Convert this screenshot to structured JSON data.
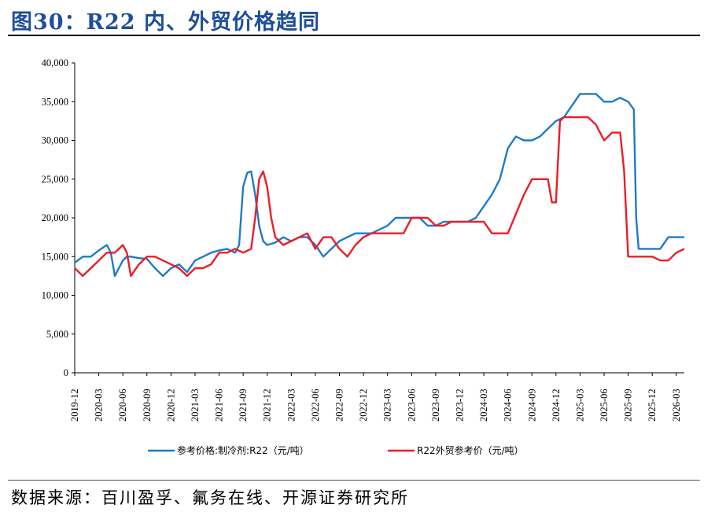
{
  "title": "图30：R22 内、外贸价格趋同",
  "source": "数据来源：百川盈孚、氟务在线、开源证券研究所",
  "colors": {
    "domestic": "#1f7bc4",
    "export": "#ee1c25",
    "title": "#1f4e9a"
  },
  "chart_data": {
    "type": "line",
    "ylim": [
      0,
      40000
    ],
    "yticks": [
      "0",
      "5,000",
      "10,000",
      "15,000",
      "20,000",
      "25,000",
      "30,000",
      "35,000",
      "40,000"
    ],
    "xticks": [
      "2019-12",
      "2020-03",
      "2020-06",
      "2020-09",
      "2020-12",
      "2021-03",
      "2021-06",
      "2021-09",
      "2021-12",
      "2022-03",
      "2022-06",
      "2022-09",
      "2022-12",
      "2023-03",
      "2023-06",
      "2023-09",
      "2023-12",
      "2024-03",
      "2024-06",
      "2024-09",
      "2024-12",
      "2025-03",
      "2025-06",
      "2025-09",
      "2025-12",
      "2026-03"
    ],
    "xlim": [
      "2019-12",
      "2026-04"
    ],
    "legend_position": "bottom",
    "grid": false,
    "series": [
      {
        "name": "参考价格:制冷剂:R22（元/吨）",
        "color": "#1f7bc4",
        "points": [
          [
            "2019-12",
            14200
          ],
          [
            "2020-01",
            15000
          ],
          [
            "2020-02",
            15000
          ],
          [
            "2020-03",
            15800
          ],
          [
            "2020-04",
            16500
          ],
          [
            "2020-04.5",
            15500
          ],
          [
            "2020-05",
            12500
          ],
          [
            "2020-05.5",
            13500
          ],
          [
            "2020-06",
            14500
          ],
          [
            "2020-06.5",
            15000
          ],
          [
            "2020-07",
            15000
          ],
          [
            "2020-08",
            14800
          ],
          [
            "2020-09",
            14700
          ],
          [
            "2020-10",
            13500
          ],
          [
            "2020-11",
            12500
          ],
          [
            "2020-12",
            13500
          ],
          [
            "2021-01",
            14000
          ],
          [
            "2021-02",
            13000
          ],
          [
            "2021-03",
            14500
          ],
          [
            "2021-04",
            15000
          ],
          [
            "2021-05",
            15500
          ],
          [
            "2021-06",
            15800
          ],
          [
            "2021-07",
            16000
          ],
          [
            "2021-08",
            15500
          ],
          [
            "2021-08.5",
            16500
          ],
          [
            "2021-09",
            24000
          ],
          [
            "2021-09.5",
            25800
          ],
          [
            "2021-10",
            26000
          ],
          [
            "2021-10.5",
            23000
          ],
          [
            "2021-11",
            19000
          ],
          [
            "2021-11.5",
            17000
          ],
          [
            "2021-12",
            16500
          ],
          [
            "2022-01",
            16800
          ],
          [
            "2022-02",
            17500
          ],
          [
            "2022-03",
            17000
          ],
          [
            "2022-04",
            17500
          ],
          [
            "2022-05",
            17500
          ],
          [
            "2022-06",
            16500
          ],
          [
            "2022-07",
            15000
          ],
          [
            "2022-08",
            16000
          ],
          [
            "2022-09",
            17000
          ],
          [
            "2022-10",
            17500
          ],
          [
            "2022-11",
            18000
          ],
          [
            "2022-12",
            18000
          ],
          [
            "2023-01",
            18000
          ],
          [
            "2023-02",
            18500
          ],
          [
            "2023-03",
            19000
          ],
          [
            "2023-04",
            20000
          ],
          [
            "2023-05",
            20000
          ],
          [
            "2023-06",
            20000
          ],
          [
            "2023-07",
            20000
          ],
          [
            "2023-08",
            19000
          ],
          [
            "2023-09",
            19000
          ],
          [
            "2023-10",
            19500
          ],
          [
            "2023-11",
            19500
          ],
          [
            "2023-12",
            19500
          ],
          [
            "2024-01",
            19500
          ],
          [
            "2024-02",
            20000
          ],
          [
            "2024-03",
            21500
          ],
          [
            "2024-04",
            23000
          ],
          [
            "2024-05",
            25000
          ],
          [
            "2024-06",
            29000
          ],
          [
            "2024-07",
            30500
          ],
          [
            "2024-08",
            30000
          ],
          [
            "2024-09",
            30000
          ],
          [
            "2024-10",
            30500
          ],
          [
            "2024-11",
            31500
          ],
          [
            "2024-12",
            32500
          ],
          [
            "2025-01",
            33000
          ],
          [
            "2025-02",
            34500
          ],
          [
            "2025-03",
            36000
          ],
          [
            "2025-04",
            36000
          ],
          [
            "2025-05",
            36000
          ],
          [
            "2025-06",
            35000
          ],
          [
            "2025-07",
            35000
          ],
          [
            "2025-08",
            35500
          ],
          [
            "2025-09",
            35000
          ],
          [
            "2025-09.7",
            34000
          ],
          [
            "2025-10",
            20000
          ],
          [
            "2025-10.3",
            16000
          ],
          [
            "2025-11",
            16000
          ],
          [
            "2025-12",
            16000
          ],
          [
            "2026-01",
            16000
          ],
          [
            "2026-02",
            17500
          ],
          [
            "2026-03",
            17500
          ],
          [
            "2026-04",
            17500
          ]
        ]
      },
      {
        "name": "R22外贸参考价（元/吨）",
        "color": "#ee1c25",
        "points": [
          [
            "2019-12",
            13500
          ],
          [
            "2020-01",
            12500
          ],
          [
            "2020-02",
            13500
          ],
          [
            "2020-03",
            14500
          ],
          [
            "2020-04",
            15500
          ],
          [
            "2020-05",
            15500
          ],
          [
            "2020-06",
            16500
          ],
          [
            "2020-06.5",
            15500
          ],
          [
            "2020-07",
            12500
          ],
          [
            "2020-08",
            14000
          ],
          [
            "2020-09",
            15000
          ],
          [
            "2020-10",
            15000
          ],
          [
            "2020-11",
            14500
          ],
          [
            "2020-12",
            14000
          ],
          [
            "2021-01",
            13500
          ],
          [
            "2021-02",
            12500
          ],
          [
            "2021-03",
            13500
          ],
          [
            "2021-04",
            13500
          ],
          [
            "2021-05",
            14000
          ],
          [
            "2021-06",
            15500
          ],
          [
            "2021-07",
            15500
          ],
          [
            "2021-08",
            16000
          ],
          [
            "2021-09",
            15500
          ],
          [
            "2021-10",
            16000
          ],
          [
            "2021-10.5",
            20000
          ],
          [
            "2021-11",
            25000
          ],
          [
            "2021-11.5",
            26000
          ],
          [
            "2021-12",
            24000
          ],
          [
            "2021-12.5",
            20000
          ],
          [
            "2022-01",
            17500
          ],
          [
            "2022-02",
            16500
          ],
          [
            "2022-03",
            17000
          ],
          [
            "2022-04",
            17500
          ],
          [
            "2022-05",
            18000
          ],
          [
            "2022-06",
            16000
          ],
          [
            "2022-07",
            17500
          ],
          [
            "2022-08",
            17500
          ],
          [
            "2022-09",
            16000
          ],
          [
            "2022-10",
            15000
          ],
          [
            "2022-11",
            16500
          ],
          [
            "2022-12",
            17500
          ],
          [
            "2023-01",
            18000
          ],
          [
            "2023-02",
            18000
          ],
          [
            "2023-03",
            18000
          ],
          [
            "2023-04",
            18000
          ],
          [
            "2023-05",
            18000
          ],
          [
            "2023-06",
            20000
          ],
          [
            "2023-07",
            20000
          ],
          [
            "2023-08",
            20000
          ],
          [
            "2023-09",
            19000
          ],
          [
            "2023-10",
            19000
          ],
          [
            "2023-11",
            19500
          ],
          [
            "2023-12",
            19500
          ],
          [
            "2024-01",
            19500
          ],
          [
            "2024-02",
            19500
          ],
          [
            "2024-03",
            19500
          ],
          [
            "2024-04",
            18000
          ],
          [
            "2024-05",
            18000
          ],
          [
            "2024-06",
            18000
          ],
          [
            "2024-07",
            20500
          ],
          [
            "2024-08",
            23000
          ],
          [
            "2024-09",
            25000
          ],
          [
            "2024-10",
            25000
          ],
          [
            "2024-11",
            25000
          ],
          [
            "2024-11.5",
            22000
          ],
          [
            "2024-12",
            22000
          ],
          [
            "2024-12.5",
            32500
          ],
          [
            "2025-01",
            33000
          ],
          [
            "2025-02",
            33000
          ],
          [
            "2025-03",
            33000
          ],
          [
            "2025-04",
            33000
          ],
          [
            "2025-05",
            32000
          ],
          [
            "2025-06",
            30000
          ],
          [
            "2025-07",
            31000
          ],
          [
            "2025-08",
            31000
          ],
          [
            "2025-08.5",
            26000
          ],
          [
            "2025-09",
            15000
          ],
          [
            "2025-10",
            15000
          ],
          [
            "2025-11",
            15000
          ],
          [
            "2025-12",
            15000
          ],
          [
            "2026-01",
            14500
          ],
          [
            "2026-02",
            14500
          ],
          [
            "2026-03",
            15500
          ],
          [
            "2026-04",
            16000
          ]
        ]
      }
    ]
  }
}
